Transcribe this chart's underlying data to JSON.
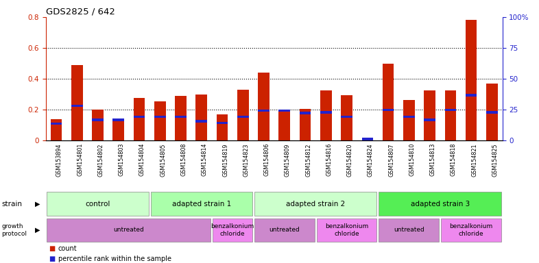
{
  "title": "GDS2825 / 642",
  "samples": [
    "GSM153894",
    "GSM154801",
    "GSM154802",
    "GSM154803",
    "GSM154804",
    "GSM154805",
    "GSM154808",
    "GSM154814",
    "GSM154819",
    "GSM154823",
    "GSM154806",
    "GSM154809",
    "GSM154812",
    "GSM154816",
    "GSM154820",
    "GSM154824",
    "GSM154807",
    "GSM154810",
    "GSM154813",
    "GSM154818",
    "GSM154821",
    "GSM154825"
  ],
  "count_values": [
    0.14,
    0.49,
    0.2,
    0.14,
    0.275,
    0.255,
    0.29,
    0.3,
    0.17,
    0.33,
    0.44,
    0.19,
    0.205,
    0.325,
    0.295,
    0.02,
    0.5,
    0.265,
    0.325,
    0.325,
    0.78,
    0.37
  ],
  "percentile_values": [
    0.11,
    0.225,
    0.135,
    0.135,
    0.155,
    0.155,
    0.155,
    0.125,
    0.115,
    0.155,
    0.195,
    0.195,
    0.18,
    0.185,
    0.155,
    0.01,
    0.2,
    0.155,
    0.135,
    0.2,
    0.295,
    0.185
  ],
  "bar_color": "#cc2200",
  "percentile_color": "#2222cc",
  "ylim_left": [
    0,
    0.8
  ],
  "ylim_right": [
    0,
    100
  ],
  "yticks_left": [
    0,
    0.2,
    0.4,
    0.6,
    0.8
  ],
  "yticks_right": [
    0,
    25,
    50,
    75,
    100
  ],
  "ytick_labels_left": [
    "0",
    "0.2",
    "0.4",
    "0.6",
    "0.8"
  ],
  "ytick_labels_right": [
    "0",
    "25",
    "50",
    "75",
    "100%"
  ],
  "strain_groups": [
    {
      "label": "control",
      "start": 0,
      "end": 5,
      "color": "#ccffcc"
    },
    {
      "label": "adapted strain 1",
      "start": 5,
      "end": 10,
      "color": "#aaffaa"
    },
    {
      "label": "adapted strain 2",
      "start": 10,
      "end": 16,
      "color": "#ccffcc"
    },
    {
      "label": "adapted strain 3",
      "start": 16,
      "end": 22,
      "color": "#55ee55"
    }
  ],
  "protocol_groups": [
    {
      "label": "untreated",
      "start": 0,
      "end": 8,
      "color": "#cc88cc"
    },
    {
      "label": "benzalkonium\nchloride",
      "start": 8,
      "end": 10,
      "color": "#ee88ee"
    },
    {
      "label": "untreated",
      "start": 10,
      "end": 13,
      "color": "#cc88cc"
    },
    {
      "label": "benzalkonium\nchloride",
      "start": 13,
      "end": 16,
      "color": "#ee88ee"
    },
    {
      "label": "untreated",
      "start": 16,
      "end": 19,
      "color": "#cc88cc"
    },
    {
      "label": "benzalkonium\nchloride",
      "start": 19,
      "end": 22,
      "color": "#ee88ee"
    }
  ],
  "background_color": "#ffffff",
  "title_color": "#000000",
  "left_axis_color": "#cc2200",
  "right_axis_color": "#2222cc",
  "xtick_bg_color": "#dddddd"
}
